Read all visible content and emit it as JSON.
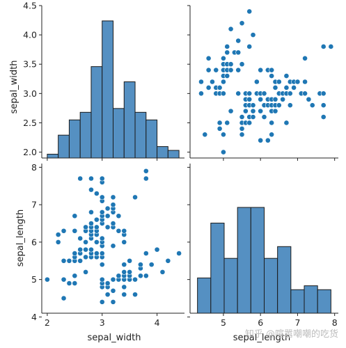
{
  "watermark": "知乎 @喧嚣嘲嘲的吃货",
  "colors": {
    "point": "#1f77b4",
    "bar_fill": "#5590c2",
    "bar_edge": "#1a1a1a",
    "axis": "#222222"
  },
  "chart_data": [
    {
      "type": "bar",
      "panel": "sepal_width vs sepal_width (histogram)",
      "xlabel": "",
      "ylabel": "sepal_width",
      "bin_edges": [
        2.0,
        2.2,
        2.4,
        2.6,
        2.8,
        3.0,
        3.2,
        3.4,
        3.6,
        3.8,
        4.0,
        4.2,
        4.4
      ],
      "counts": [
        1,
        6,
        10,
        12,
        24,
        36,
        13,
        20,
        12,
        10,
        3,
        2
      ],
      "xlim": [
        1.9,
        4.5
      ],
      "ylim": [
        1.9,
        4.5
      ],
      "grid": false
    },
    {
      "type": "scatter",
      "panel": "sepal_length (x) vs sepal_width (y)",
      "xlabel": "",
      "ylabel": "",
      "xlim": [
        4.2,
        8.1
      ],
      "ylim": [
        1.9,
        4.5
      ],
      "grid": false,
      "points": [
        [
          4.4,
          3.0
        ],
        [
          4.4,
          3.2
        ],
        [
          4.5,
          2.3
        ],
        [
          4.6,
          3.1
        ],
        [
          4.6,
          3.4
        ],
        [
          4.6,
          3.6
        ],
        [
          4.7,
          3.2
        ],
        [
          4.8,
          3.0
        ],
        [
          4.8,
          3.1
        ],
        [
          4.8,
          3.4
        ],
        [
          4.9,
          2.4
        ],
        [
          4.9,
          2.5
        ],
        [
          4.9,
          3.0
        ],
        [
          4.9,
          3.1
        ],
        [
          5.0,
          2.0
        ],
        [
          5.0,
          2.3
        ],
        [
          5.0,
          3.0
        ],
        [
          5.0,
          3.2
        ],
        [
          5.0,
          3.3
        ],
        [
          5.0,
          3.4
        ],
        [
          5.0,
          3.5
        ],
        [
          5.0,
          3.6
        ],
        [
          5.1,
          2.5
        ],
        [
          5.1,
          3.3
        ],
        [
          5.1,
          3.4
        ],
        [
          5.1,
          3.5
        ],
        [
          5.1,
          3.7
        ],
        [
          5.1,
          3.8
        ],
        [
          5.2,
          2.7
        ],
        [
          5.2,
          3.4
        ],
        [
          5.2,
          3.5
        ],
        [
          5.2,
          4.1
        ],
        [
          5.3,
          3.7
        ],
        [
          5.4,
          3.0
        ],
        [
          5.4,
          3.4
        ],
        [
          5.4,
          3.7
        ],
        [
          5.4,
          3.9
        ],
        [
          5.5,
          2.3
        ],
        [
          5.5,
          2.4
        ],
        [
          5.5,
          2.5
        ],
        [
          5.5,
          2.6
        ],
        [
          5.5,
          3.5
        ],
        [
          5.5,
          4.2
        ],
        [
          5.6,
          2.5
        ],
        [
          5.6,
          2.7
        ],
        [
          5.6,
          2.8
        ],
        [
          5.6,
          2.9
        ],
        [
          5.6,
          3.0
        ],
        [
          5.7,
          2.5
        ],
        [
          5.7,
          2.6
        ],
        [
          5.7,
          2.8
        ],
        [
          5.7,
          2.9
        ],
        [
          5.7,
          3.0
        ],
        [
          5.7,
          3.8
        ],
        [
          5.7,
          4.4
        ],
        [
          5.8,
          2.6
        ],
        [
          5.8,
          2.7
        ],
        [
          5.8,
          2.8
        ],
        [
          5.8,
          4.0
        ],
        [
          5.9,
          3.0
        ],
        [
          5.9,
          3.2
        ],
        [
          6.0,
          2.2
        ],
        [
          6.0,
          2.7
        ],
        [
          6.0,
          2.9
        ],
        [
          6.0,
          3.0
        ],
        [
          6.0,
          3.4
        ],
        [
          6.1,
          2.6
        ],
        [
          6.1,
          2.8
        ],
        [
          6.1,
          3.0
        ],
        [
          6.2,
          2.2
        ],
        [
          6.2,
          2.8
        ],
        [
          6.2,
          2.9
        ],
        [
          6.2,
          3.4
        ],
        [
          6.3,
          2.3
        ],
        [
          6.3,
          2.5
        ],
        [
          6.3,
          2.7
        ],
        [
          6.3,
          2.8
        ],
        [
          6.3,
          2.9
        ],
        [
          6.3,
          3.3
        ],
        [
          6.3,
          3.4
        ],
        [
          6.4,
          2.7
        ],
        [
          6.4,
          2.8
        ],
        [
          6.4,
          2.9
        ],
        [
          6.4,
          3.1
        ],
        [
          6.4,
          3.2
        ],
        [
          6.5,
          2.8
        ],
        [
          6.5,
          3.0
        ],
        [
          6.5,
          3.2
        ],
        [
          6.6,
          2.9
        ],
        [
          6.6,
          3.0
        ],
        [
          6.7,
          2.5
        ],
        [
          6.7,
          3.0
        ],
        [
          6.7,
          3.1
        ],
        [
          6.7,
          3.3
        ],
        [
          6.8,
          2.8
        ],
        [
          6.8,
          3.0
        ],
        [
          6.8,
          3.2
        ],
        [
          6.9,
          3.1
        ],
        [
          6.9,
          3.2
        ],
        [
          7.0,
          3.2
        ],
        [
          7.1,
          3.0
        ],
        [
          7.2,
          3.0
        ],
        [
          7.2,
          3.2
        ],
        [
          7.2,
          3.6
        ],
        [
          7.3,
          2.9
        ],
        [
          7.4,
          2.8
        ],
        [
          7.6,
          3.0
        ],
        [
          7.7,
          2.6
        ],
        [
          7.7,
          2.8
        ],
        [
          7.7,
          3.0
        ],
        [
          7.7,
          3.8
        ],
        [
          7.9,
          3.8
        ]
      ]
    },
    {
      "type": "scatter",
      "panel": "sepal_width (x) vs sepal_length (y)",
      "xlabel": "sepal_width",
      "ylabel": "sepal_length",
      "xlim": [
        1.9,
        4.5
      ],
      "ylim": [
        4.1,
        8.1
      ],
      "grid": false,
      "note_transposed_from_panel_above": true
    },
    {
      "type": "bar",
      "panel": "sepal_length vs sepal_length (histogram)",
      "xlabel": "sepal_length",
      "ylabel": "",
      "bin_edges": [
        4.3,
        4.66,
        5.02,
        5.38,
        5.74,
        6.1,
        6.46,
        6.82,
        7.18,
        7.54,
        7.9
      ],
      "counts": [
        9,
        23,
        14,
        27,
        27,
        14,
        17,
        6,
        7,
        6
      ],
      "xlim": [
        4.1,
        8.1
      ],
      "ylim": [
        0,
        30
      ],
      "grid": false
    }
  ],
  "axes": {
    "sepal_width_ticks": [
      "2.0",
      "2.5",
      "3.0",
      "3.5",
      "4.0",
      "4.5"
    ],
    "sepal_length_ticks": [
      "4",
      "5",
      "6",
      "7",
      "8"
    ],
    "bottom_left_x_ticks": [
      "2",
      "3",
      "4"
    ],
    "bottom_right_x_ticks": [
      "5",
      "6",
      "7",
      "8"
    ],
    "x_label_left": "sepal_width",
    "x_label_right": "sepal_length",
    "y_label_top": "sepal_width",
    "y_label_bottom": "sepal_length"
  }
}
